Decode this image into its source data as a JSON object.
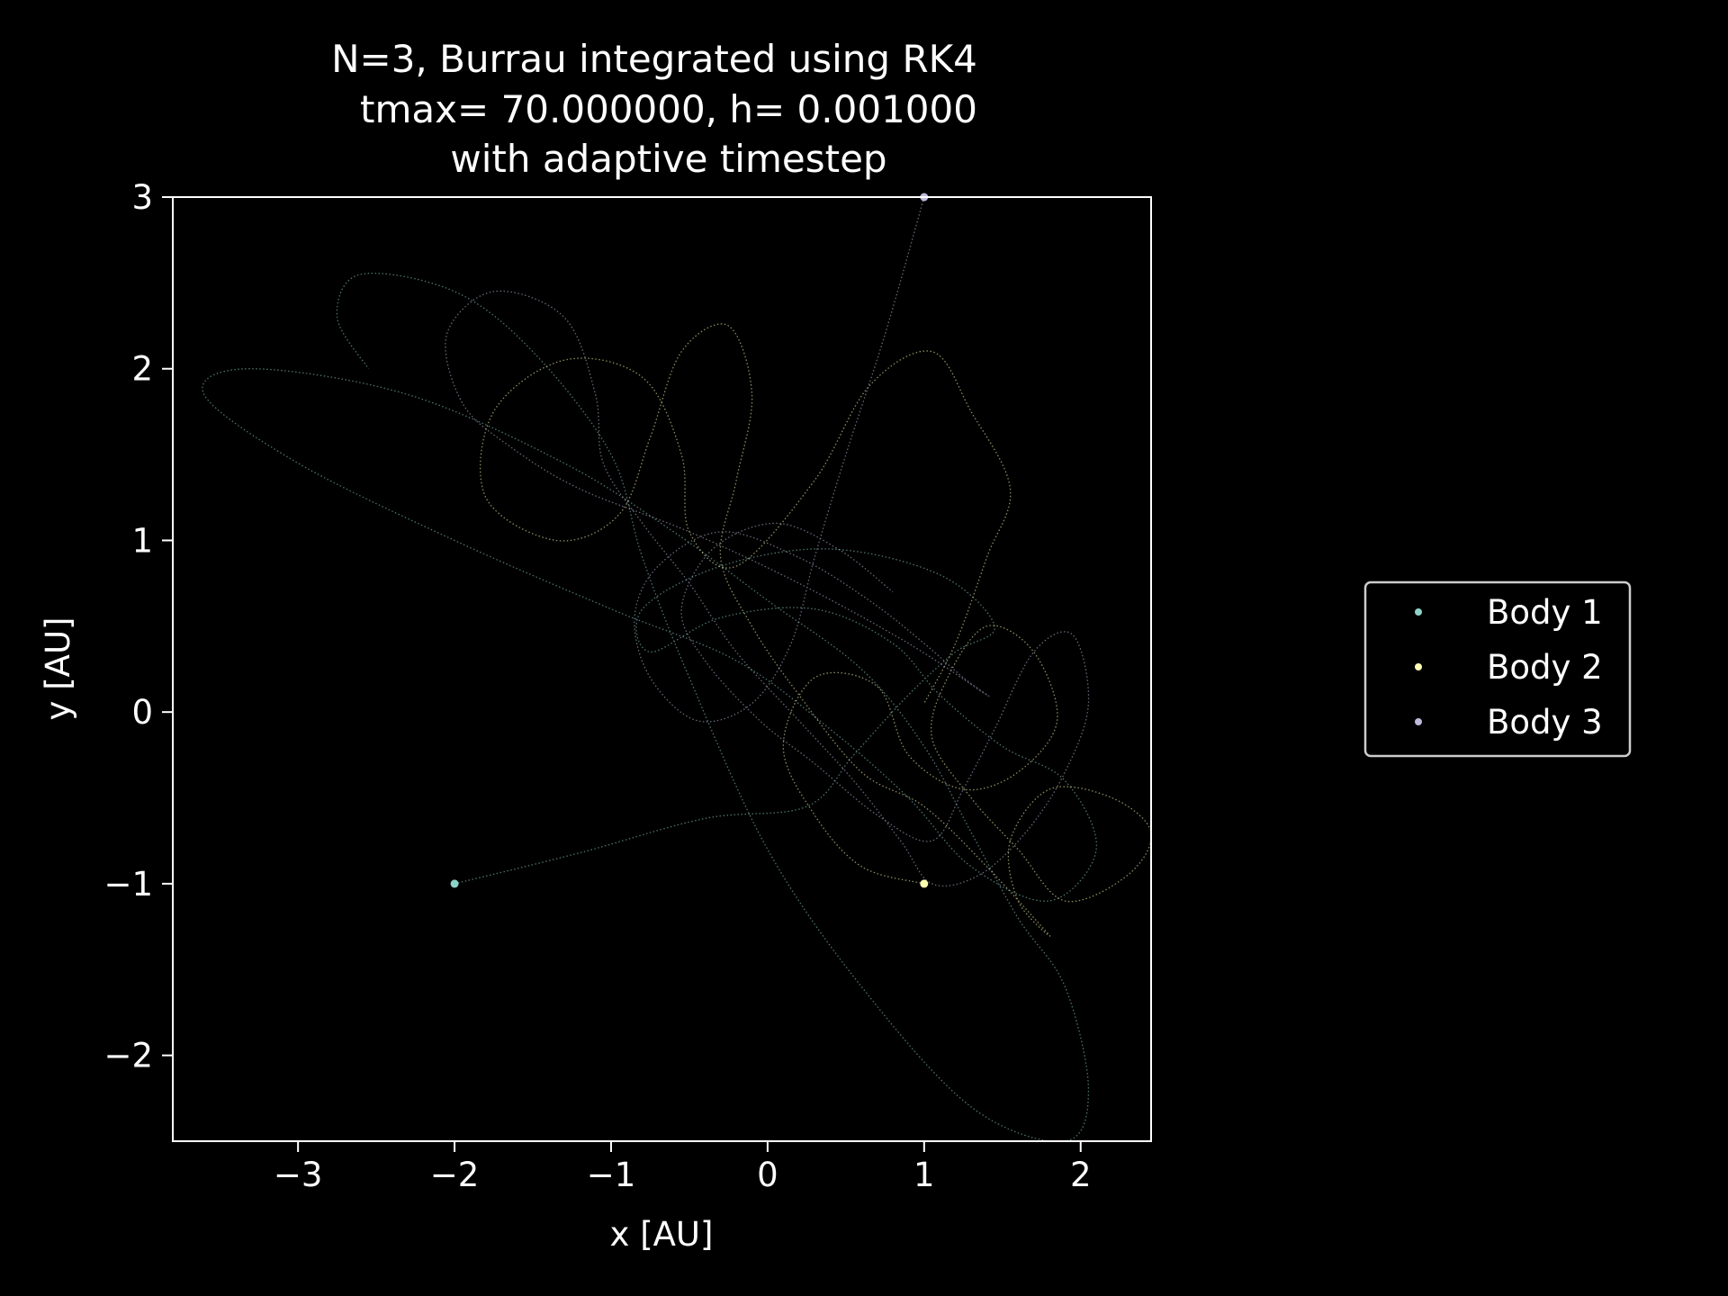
{
  "chart_data": {
    "type": "scatter",
    "title": [
      "N=3, Burrau integrated using RK4",
      "tmax= 70.000000, h= 0.001000",
      "with adaptive timestep"
    ],
    "xlabel": "x [AU]",
    "ylabel": "y [AU]",
    "xlim": [
      -3.8,
      2.45
    ],
    "ylim": [
      -2.5,
      3.0
    ],
    "xticks": [
      -3,
      -2,
      -1,
      0,
      1,
      2
    ],
    "xtick_labels": [
      "−3",
      "−2",
      "−1",
      "0",
      "1",
      "2"
    ],
    "yticks": [
      -2,
      -1,
      0,
      1,
      2,
      3
    ],
    "ytick_labels": [
      "−2",
      "−1",
      "0",
      "1",
      "2",
      "3"
    ],
    "grid": false,
    "legend": {
      "placement": "outside-right",
      "entries": [
        "Body 1",
        "Body 2",
        "Body 3"
      ]
    },
    "series": [
      {
        "name": "Body 1",
        "color": "#8dd3c7",
        "initial": [
          -2,
          -1
        ],
        "trajectory": [
          [
            -2.0,
            -1.0
          ],
          [
            -1.2,
            -0.82
          ],
          [
            -0.4,
            -0.62
          ],
          [
            0.25,
            -0.55
          ],
          [
            0.55,
            -0.25
          ],
          [
            0.9,
            0.1
          ],
          [
            1.2,
            0.35
          ],
          [
            1.45,
            0.5
          ],
          [
            1.1,
            0.8
          ],
          [
            0.4,
            0.95
          ],
          [
            -0.3,
            0.85
          ],
          [
            -0.8,
            0.6
          ],
          [
            -0.75,
            0.35
          ],
          [
            -0.3,
            0.55
          ],
          [
            0.3,
            0.6
          ],
          [
            0.8,
            0.4
          ],
          [
            1.1,
            0.1
          ],
          [
            1.5,
            -0.2
          ],
          [
            1.9,
            -0.4
          ],
          [
            2.1,
            -0.8
          ],
          [
            1.8,
            -1.1
          ],
          [
            1.3,
            -0.9
          ],
          [
            0.9,
            -0.5
          ],
          [
            0.4,
            -0.1
          ],
          [
            -0.2,
            0.3
          ],
          [
            -1.0,
            0.6
          ],
          [
            -2.0,
            1.0
          ],
          [
            -3.0,
            1.45
          ],
          [
            -3.6,
            1.85
          ],
          [
            -3.3,
            2.0
          ],
          [
            -2.3,
            1.85
          ],
          [
            -1.3,
            1.45
          ],
          [
            -0.6,
            1.05
          ],
          [
            0.0,
            0.65
          ],
          [
            0.6,
            0.25
          ],
          [
            1.0,
            -0.2
          ],
          [
            1.3,
            -0.7
          ],
          [
            1.6,
            -1.2
          ],
          [
            1.9,
            -1.6
          ],
          [
            2.05,
            -2.2
          ],
          [
            1.9,
            -2.5
          ],
          [
            1.3,
            -2.3
          ],
          [
            0.6,
            -1.6
          ],
          [
            0.0,
            -0.8
          ],
          [
            -0.5,
            0.2
          ],
          [
            -0.8,
            0.9
          ],
          [
            -1.0,
            1.5
          ],
          [
            -1.5,
            2.1
          ],
          [
            -2.0,
            2.45
          ],
          [
            -2.6,
            2.55
          ],
          [
            -2.75,
            2.3
          ],
          [
            -2.55,
            2.0
          ]
        ]
      },
      {
        "name": "Body 2",
        "color": "#ffffb3",
        "initial": [
          1,
          -1
        ],
        "trajectory": [
          [
            1.0,
            -1.0
          ],
          [
            0.6,
            -0.9
          ],
          [
            0.3,
            -0.6
          ],
          [
            0.1,
            -0.2
          ],
          [
            0.3,
            0.2
          ],
          [
            0.7,
            0.15
          ],
          [
            0.9,
            -0.25
          ],
          [
            1.25,
            -0.45
          ],
          [
            1.6,
            -0.35
          ],
          [
            1.85,
            -0.05
          ],
          [
            1.7,
            0.35
          ],
          [
            1.4,
            0.5
          ],
          [
            1.15,
            0.2
          ],
          [
            1.05,
            -0.15
          ],
          [
            1.3,
            -0.5
          ],
          [
            1.6,
            -0.8
          ],
          [
            1.9,
            -1.1
          ],
          [
            2.3,
            -0.95
          ],
          [
            2.45,
            -0.7
          ],
          [
            2.2,
            -0.5
          ],
          [
            1.8,
            -0.45
          ],
          [
            1.55,
            -0.75
          ],
          [
            1.6,
            -1.1
          ],
          [
            1.8,
            -1.3
          ],
          [
            1.4,
            -0.9
          ],
          [
            1.0,
            -0.55
          ],
          [
            0.6,
            -0.35
          ],
          [
            0.2,
            0.1
          ],
          [
            -0.1,
            0.5
          ],
          [
            -0.3,
            0.9
          ],
          [
            -0.2,
            1.35
          ],
          [
            -0.1,
            1.85
          ],
          [
            -0.25,
            2.25
          ],
          [
            -0.55,
            2.1
          ],
          [
            -0.75,
            1.6
          ],
          [
            -0.95,
            1.15
          ],
          [
            -1.35,
            1.0
          ],
          [
            -1.8,
            1.25
          ],
          [
            -1.75,
            1.75
          ],
          [
            -1.3,
            2.05
          ],
          [
            -0.8,
            1.95
          ],
          [
            -0.55,
            1.5
          ],
          [
            -0.5,
            1.05
          ],
          [
            -0.2,
            0.85
          ],
          [
            0.3,
            1.35
          ],
          [
            0.65,
            1.9
          ],
          [
            1.05,
            2.1
          ],
          [
            1.3,
            1.75
          ],
          [
            1.55,
            1.3
          ],
          [
            1.4,
            0.9
          ],
          [
            1.2,
            0.4
          ],
          [
            1.0,
            0.05
          ]
        ]
      },
      {
        "name": "Body 3",
        "color": "#bebada",
        "initial": [
          1,
          3
        ],
        "trajectory": [
          [
            1.0,
            3.0
          ],
          [
            0.75,
            2.2
          ],
          [
            0.5,
            1.5
          ],
          [
            0.3,
            0.9
          ],
          [
            0.15,
            0.4
          ],
          [
            -0.1,
            0.05
          ],
          [
            -0.45,
            -0.05
          ],
          [
            -0.75,
            0.2
          ],
          [
            -0.85,
            0.55
          ],
          [
            -0.7,
            0.85
          ],
          [
            -0.3,
            1.05
          ],
          [
            0.2,
            0.9
          ],
          [
            0.65,
            0.65
          ],
          [
            1.0,
            0.4
          ],
          [
            1.25,
            0.2
          ],
          [
            1.4,
            0.1
          ],
          [
            0.9,
            0.4
          ],
          [
            0.2,
            0.75
          ],
          [
            -0.5,
            1.05
          ],
          [
            -1.2,
            1.3
          ],
          [
            -1.65,
            1.55
          ],
          [
            -1.95,
            1.8
          ],
          [
            -2.05,
            2.2
          ],
          [
            -1.75,
            2.45
          ],
          [
            -1.3,
            2.3
          ],
          [
            -1.1,
            1.85
          ],
          [
            -1.05,
            1.45
          ],
          [
            -0.8,
            1.1
          ],
          [
            -0.5,
            0.75
          ],
          [
            -0.2,
            0.35
          ],
          [
            0.2,
            -0.05
          ],
          [
            0.55,
            -0.4
          ],
          [
            0.85,
            -0.75
          ],
          [
            1.05,
            -1.0
          ],
          [
            1.35,
            -0.95
          ],
          [
            1.65,
            -0.7
          ],
          [
            1.9,
            -0.35
          ],
          [
            2.05,
            0.05
          ],
          [
            1.95,
            0.45
          ],
          [
            1.7,
            0.35
          ],
          [
            1.45,
            -0.1
          ],
          [
            1.25,
            -0.45
          ],
          [
            1.05,
            -0.75
          ],
          [
            0.7,
            -0.6
          ],
          [
            0.3,
            -0.3
          ],
          [
            -0.05,
            -0.05
          ],
          [
            -0.4,
            0.3
          ],
          [
            -0.55,
            0.6
          ],
          [
            -0.35,
            0.95
          ],
          [
            0.05,
            1.1
          ],
          [
            0.45,
            0.95
          ],
          [
            0.8,
            0.7
          ]
        ]
      }
    ]
  }
}
